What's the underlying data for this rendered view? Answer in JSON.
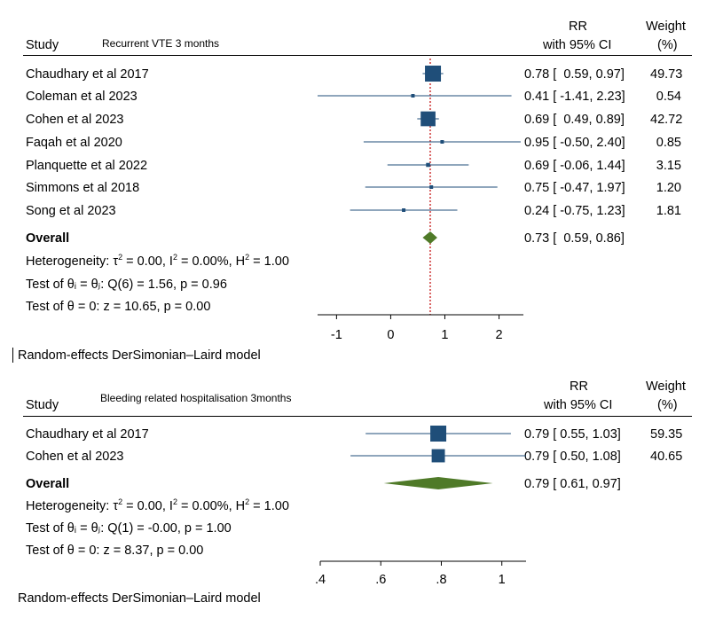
{
  "chart_data": [
    {
      "type": "forest",
      "subtitle": "Recurrent VTE 3 months",
      "col_study": "Study",
      "col_rr": "RR",
      "col_ci": "with 95% CI",
      "col_weight": "Weight",
      "col_weight_unit": "(%)",
      "studies": [
        {
          "label": "Chaudhary et al 2017",
          "rr": 0.78,
          "lo": 0.59,
          "hi": 0.97,
          "ci_text": "0.78 [  0.59, 0.97]",
          "weight": "49.73"
        },
        {
          "label": "Coleman et al 2023",
          "rr": 0.41,
          "lo": -1.41,
          "hi": 2.23,
          "ci_text": "0.41 [ -1.41, 2.23]",
          "weight": "0.54"
        },
        {
          "label": "Cohen et al 2023",
          "rr": 0.69,
          "lo": 0.49,
          "hi": 0.89,
          "ci_text": "0.69 [  0.49, 0.89]",
          "weight": "42.72"
        },
        {
          "label": "Faqah et al 2020",
          "rr": 0.95,
          "lo": -0.5,
          "hi": 2.4,
          "ci_text": "0.95 [ -0.50, 2.40]",
          "weight": "0.85"
        },
        {
          "label": "Planquette et al 2022",
          "rr": 0.69,
          "lo": -0.06,
          "hi": 1.44,
          "ci_text": "0.69 [ -0.06, 1.44]",
          "weight": "3.15"
        },
        {
          "label": "Simmons et al 2018",
          "rr": 0.75,
          "lo": -0.47,
          "hi": 1.97,
          "ci_text": "0.75 [ -0.47, 1.97]",
          "weight": "1.20"
        },
        {
          "label": "Song et al 2023",
          "rr": 0.24,
          "lo": -0.75,
          "hi": 1.23,
          "ci_text": "0.24 [ -0.75, 1.23]",
          "weight": "1.81"
        }
      ],
      "overall": {
        "label": "Overall",
        "rr": 0.73,
        "lo": 0.59,
        "hi": 0.86,
        "ci_text": "0.73 [  0.59, 0.86]"
      },
      "het_prefix": "Heterogeneity: τ",
      "het_tau": "2",
      "het_mid": " = 0.00, I",
      "het_i": "2",
      "het_mid2": " = 0.00%, H",
      "het_h": "2",
      "het_end": " = 1.00",
      "test_equal": "Test of θᵢ = θⱼ: Q(6) = 1.56, p = 0.96",
      "test_zero": "Test of θ = 0: z = 10.65, p = 0.00",
      "model": "Random-effects DerSimonian–Laird model",
      "xlim": [
        -1.35,
        2.45
      ],
      "ticks": [
        -1,
        0,
        1,
        2
      ],
      "tick_labels": [
        "-1",
        "0",
        "1",
        "2"
      ],
      "reference_line": 0.73
    },
    {
      "type": "forest",
      "subtitle": "Bleeding related hospitalisation 3months",
      "col_study": "Study",
      "col_rr": "RR",
      "col_ci": "with 95% CI",
      "col_weight": "Weight",
      "col_weight_unit": "(%)",
      "studies": [
        {
          "label": "Chaudhary et al 2017",
          "rr": 0.79,
          "lo": 0.55,
          "hi": 1.03,
          "ci_text": "0.79 [ 0.55, 1.03]",
          "weight": "59.35"
        },
        {
          "label": "Cohen et al 2023",
          "rr": 0.79,
          "lo": 0.5,
          "hi": 1.08,
          "ci_text": "0.79 [ 0.50, 1.08]",
          "weight": "40.65"
        }
      ],
      "overall": {
        "label": "Overall",
        "rr": 0.79,
        "lo": 0.61,
        "hi": 0.97,
        "ci_text": "0.79 [ 0.61, 0.97]"
      },
      "het_prefix": "Heterogeneity: τ",
      "het_tau": "2",
      "het_mid": " = 0.00, I",
      "het_i": "2",
      "het_mid2": " = 0.00%, H",
      "het_h": "2",
      "het_end": " = 1.00",
      "test_equal": "Test of θᵢ = θⱼ: Q(1) = -0.00, p = 1.00",
      "test_zero": "Test of θ = 0: z = 8.37, p = 0.00",
      "model": "Random-effects DerSimonian–Laird model",
      "xlim": [
        0.4,
        1.08
      ],
      "ticks": [
        0.4,
        0.6,
        0.8,
        1.0
      ],
      "tick_labels": [
        ".4",
        ".6",
        ".8",
        "1"
      ],
      "reference_line": null
    }
  ],
  "colors": {
    "marker": "#1f4e79",
    "line": "#1f4e79",
    "diamond": "#4f7a28",
    "refline": "#c00000"
  }
}
